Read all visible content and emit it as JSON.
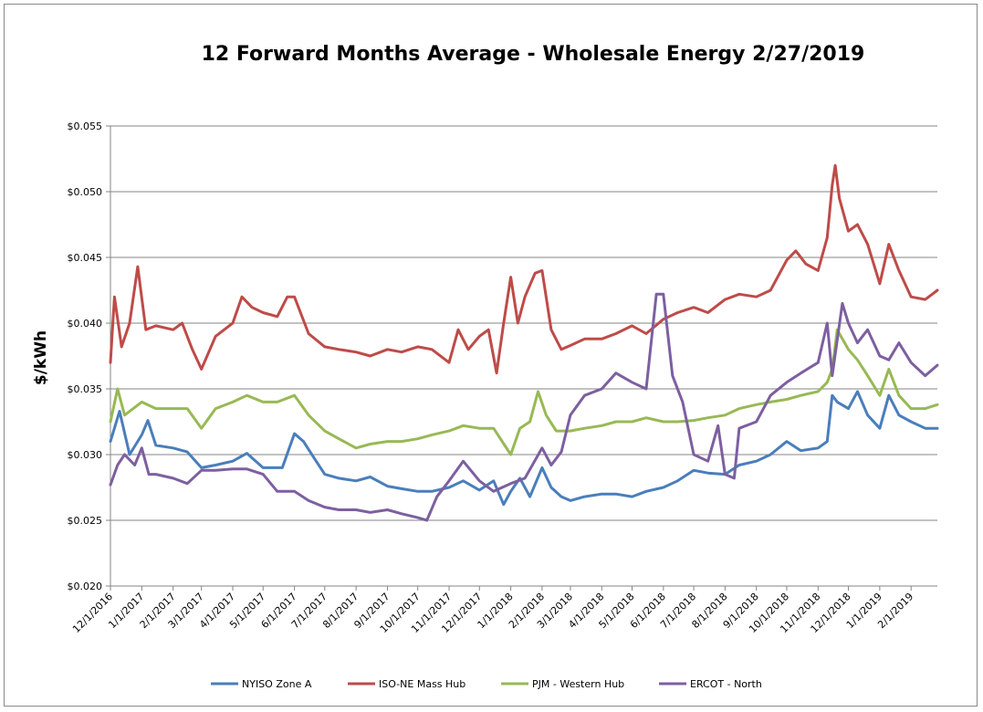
{
  "chart_data": {
    "type": "line",
    "title": "12 Forward Months Average - Wholesale Energy 2/27/2019",
    "xlabel": "",
    "ylabel": "$/kWh",
    "ylim": [
      0.02,
      0.055
    ],
    "yticks": [
      0.02,
      0.025,
      0.03,
      0.035,
      0.04,
      0.045,
      0.05,
      0.055
    ],
    "ytick_labels": [
      "$0.020",
      "$0.025",
      "$0.030",
      "$0.035",
      "$0.040",
      "$0.045",
      "$0.050",
      "$0.055"
    ],
    "xlim": [
      "12/1/2016",
      "2/27/2019"
    ],
    "xtick_labels": [
      "12/1/2016",
      "1/1/2017",
      "2/1/2017",
      "3/1/2017",
      "4/1/2017",
      "5/1/2017",
      "6/1/2017",
      "7/1/2017",
      "8/1/2017",
      "9/1/2017",
      "10/1/2017",
      "11/1/2017",
      "12/1/2017",
      "1/1/2018",
      "2/1/2018",
      "3/1/2018",
      "4/1/2018",
      "5/1/2018",
      "6/1/2018",
      "7/1/2018",
      "8/1/2018",
      "9/1/2018",
      "10/1/2018",
      "11/1/2018",
      "12/1/2018",
      "1/1/2019",
      "2/1/2019"
    ],
    "grid": "horizontal",
    "legend_position": "bottom",
    "series": [
      {
        "name": "NYISO Zone A",
        "color": "#4a7ebb",
        "points": [
          [
            "12/1/2016",
            0.031
          ],
          [
            "12/10/2016",
            0.0333
          ],
          [
            "12/20/2016",
            0.03
          ],
          [
            "1/1/2017",
            0.0315
          ],
          [
            "1/7/2017",
            0.0326
          ],
          [
            "1/15/2017",
            0.0307
          ],
          [
            "2/1/2017",
            0.0305
          ],
          [
            "2/15/2017",
            0.0302
          ],
          [
            "3/1/2017",
            0.029
          ],
          [
            "3/15/2017",
            0.0292
          ],
          [
            "4/1/2017",
            0.0295
          ],
          [
            "4/15/2017",
            0.0301
          ],
          [
            "5/1/2017",
            0.029
          ],
          [
            "5/20/2017",
            0.029
          ],
          [
            "6/1/2017",
            0.0316
          ],
          [
            "6/10/2017",
            0.031
          ],
          [
            "6/20/2017",
            0.0298
          ],
          [
            "7/1/2017",
            0.0285
          ],
          [
            "7/15/2017",
            0.0282
          ],
          [
            "8/1/2017",
            0.028
          ],
          [
            "8/15/2017",
            0.0283
          ],
          [
            "9/1/2017",
            0.0276
          ],
          [
            "9/15/2017",
            0.0274
          ],
          [
            "10/1/2017",
            0.0272
          ],
          [
            "10/15/2017",
            0.0272
          ],
          [
            "11/1/2017",
            0.0275
          ],
          [
            "11/15/2017",
            0.028
          ],
          [
            "12/1/2017",
            0.0273
          ],
          [
            "12/15/2017",
            0.028
          ],
          [
            "12/25/2017",
            0.0262
          ],
          [
            "1/1/2018",
            0.0272
          ],
          [
            "1/10/2018",
            0.0282
          ],
          [
            "1/20/2018",
            0.0268
          ],
          [
            "2/1/2018",
            0.029
          ],
          [
            "2/10/2018",
            0.0275
          ],
          [
            "2/20/2018",
            0.0268
          ],
          [
            "3/1/2018",
            0.0265
          ],
          [
            "3/15/2018",
            0.0268
          ],
          [
            "4/1/2018",
            0.027
          ],
          [
            "4/15/2018",
            0.027
          ],
          [
            "5/1/2018",
            0.0268
          ],
          [
            "5/15/2018",
            0.0272
          ],
          [
            "6/1/2018",
            0.0275
          ],
          [
            "6/15/2018",
            0.028
          ],
          [
            "7/1/2018",
            0.0288
          ],
          [
            "7/15/2018",
            0.0286
          ],
          [
            "8/1/2018",
            0.0285
          ],
          [
            "8/15/2018",
            0.0292
          ],
          [
            "9/1/2018",
            0.0295
          ],
          [
            "9/15/2018",
            0.03
          ],
          [
            "10/1/2018",
            0.031
          ],
          [
            "10/15/2018",
            0.0303
          ],
          [
            "11/1/2018",
            0.0305
          ],
          [
            "11/10/2018",
            0.031
          ],
          [
            "11/15/2018",
            0.0345
          ],
          [
            "11/20/2018",
            0.034
          ],
          [
            "12/1/2018",
            0.0335
          ],
          [
            "12/10/2018",
            0.0348
          ],
          [
            "12/20/2018",
            0.033
          ],
          [
            "1/1/2019",
            0.032
          ],
          [
            "1/10/2019",
            0.0345
          ],
          [
            "1/20/2019",
            0.033
          ],
          [
            "2/1/2019",
            0.0325
          ],
          [
            "2/15/2019",
            0.032
          ],
          [
            "2/27/2019",
            0.032
          ]
        ]
      },
      {
        "name": "ISO-NE Mass Hub",
        "color": "#be4b48",
        "points": [
          [
            "12/1/2016",
            0.037
          ],
          [
            "12/5/2016",
            0.042
          ],
          [
            "12/12/2016",
            0.0382
          ],
          [
            "12/20/2016",
            0.04
          ],
          [
            "12/28/2016",
            0.0443
          ],
          [
            "1/5/2017",
            0.0395
          ],
          [
            "1/15/2017",
            0.0398
          ],
          [
            "2/1/2017",
            0.0395
          ],
          [
            "2/10/2017",
            0.04
          ],
          [
            "2/20/2017",
            0.038
          ],
          [
            "3/1/2017",
            0.0365
          ],
          [
            "3/15/2017",
            0.039
          ],
          [
            "4/1/2017",
            0.04
          ],
          [
            "4/10/2017",
            0.042
          ],
          [
            "4/20/2017",
            0.0412
          ],
          [
            "5/1/2017",
            0.0408
          ],
          [
            "5/15/2017",
            0.0405
          ],
          [
            "5/25/2017",
            0.042
          ],
          [
            "6/1/2017",
            0.042
          ],
          [
            "6/15/2017",
            0.0392
          ],
          [
            "7/1/2017",
            0.0382
          ],
          [
            "7/15/2017",
            0.038
          ],
          [
            "8/1/2017",
            0.0378
          ],
          [
            "8/15/2017",
            0.0375
          ],
          [
            "9/1/2017",
            0.038
          ],
          [
            "9/15/2017",
            0.0378
          ],
          [
            "10/1/2017",
            0.0382
          ],
          [
            "10/15/2017",
            0.038
          ],
          [
            "11/1/2017",
            0.037
          ],
          [
            "11/10/2017",
            0.0395
          ],
          [
            "11/20/2017",
            0.038
          ],
          [
            "12/1/2017",
            0.039
          ],
          [
            "12/10/2017",
            0.0395
          ],
          [
            "12/18/2017",
            0.0362
          ],
          [
            "12/25/2017",
            0.04
          ],
          [
            "1/1/2018",
            0.0435
          ],
          [
            "1/8/2018",
            0.04
          ],
          [
            "1/15/2018",
            0.042
          ],
          [
            "1/25/2018",
            0.0438
          ],
          [
            "2/1/2018",
            0.044
          ],
          [
            "2/10/2018",
            0.0395
          ],
          [
            "2/20/2018",
            0.038
          ],
          [
            "3/1/2018",
            0.0383
          ],
          [
            "3/15/2018",
            0.0388
          ],
          [
            "4/1/2018",
            0.0388
          ],
          [
            "4/15/2018",
            0.0392
          ],
          [
            "5/1/2018",
            0.0398
          ],
          [
            "5/15/2018",
            0.0392
          ],
          [
            "6/1/2018",
            0.0403
          ],
          [
            "6/15/2018",
            0.0408
          ],
          [
            "7/1/2018",
            0.0412
          ],
          [
            "7/15/2018",
            0.0408
          ],
          [
            "8/1/2018",
            0.0418
          ],
          [
            "8/15/2018",
            0.0422
          ],
          [
            "9/1/2018",
            0.042
          ],
          [
            "9/15/2018",
            0.0425
          ],
          [
            "10/1/2018",
            0.0448
          ],
          [
            "10/10/2018",
            0.0455
          ],
          [
            "10/20/2018",
            0.0445
          ],
          [
            "11/1/2018",
            0.044
          ],
          [
            "11/10/2018",
            0.0465
          ],
          [
            "11/15/2018",
            0.0505
          ],
          [
            "11/18/2018",
            0.052
          ],
          [
            "11/22/2018",
            0.0495
          ],
          [
            "12/1/2018",
            0.047
          ],
          [
            "12/10/2018",
            0.0475
          ],
          [
            "12/20/2018",
            0.046
          ],
          [
            "1/1/2019",
            0.043
          ],
          [
            "1/10/2019",
            0.046
          ],
          [
            "1/20/2019",
            0.044
          ],
          [
            "2/1/2019",
            0.042
          ],
          [
            "2/15/2019",
            0.0418
          ],
          [
            "2/27/2019",
            0.0425
          ]
        ]
      },
      {
        "name": "PJM - Western Hub",
        "color": "#98b954",
        "points": [
          [
            "12/1/2016",
            0.0325
          ],
          [
            "12/8/2016",
            0.035
          ],
          [
            "12/15/2016",
            0.033
          ],
          [
            "1/1/2017",
            0.034
          ],
          [
            "1/15/2017",
            0.0335
          ],
          [
            "2/1/2017",
            0.0335
          ],
          [
            "2/15/2017",
            0.0335
          ],
          [
            "3/1/2017",
            0.032
          ],
          [
            "3/15/2017",
            0.0335
          ],
          [
            "4/1/2017",
            0.034
          ],
          [
            "4/15/2017",
            0.0345
          ],
          [
            "5/1/2017",
            0.034
          ],
          [
            "5/15/2017",
            0.034
          ],
          [
            "6/1/2017",
            0.0345
          ],
          [
            "6/15/2017",
            0.033
          ],
          [
            "7/1/2017",
            0.0318
          ],
          [
            "7/15/2017",
            0.0312
          ],
          [
            "8/1/2017",
            0.0305
          ],
          [
            "8/15/2017",
            0.0308
          ],
          [
            "9/1/2017",
            0.031
          ],
          [
            "9/15/2017",
            0.031
          ],
          [
            "10/1/2017",
            0.0312
          ],
          [
            "10/15/2017",
            0.0315
          ],
          [
            "11/1/2017",
            0.0318
          ],
          [
            "11/15/2017",
            0.0322
          ],
          [
            "12/1/2017",
            0.032
          ],
          [
            "12/15/2017",
            0.032
          ],
          [
            "1/1/2018",
            0.03
          ],
          [
            "1/10/2018",
            0.032
          ],
          [
            "1/20/2018",
            0.0325
          ],
          [
            "1/28/2018",
            0.0348
          ],
          [
            "2/5/2018",
            0.033
          ],
          [
            "2/15/2018",
            0.0318
          ],
          [
            "3/1/2018",
            0.0318
          ],
          [
            "3/15/2018",
            0.032
          ],
          [
            "4/1/2018",
            0.0322
          ],
          [
            "4/15/2018",
            0.0325
          ],
          [
            "5/1/2018",
            0.0325
          ],
          [
            "5/15/2018",
            0.0328
          ],
          [
            "6/1/2018",
            0.0325
          ],
          [
            "6/15/2018",
            0.0325
          ],
          [
            "7/1/2018",
            0.0326
          ],
          [
            "7/15/2018",
            0.0328
          ],
          [
            "8/1/2018",
            0.033
          ],
          [
            "8/15/2018",
            0.0335
          ],
          [
            "9/1/2018",
            0.0338
          ],
          [
            "9/15/2018",
            0.034
          ],
          [
            "10/1/2018",
            0.0342
          ],
          [
            "10/15/2018",
            0.0345
          ],
          [
            "11/1/2018",
            0.0348
          ],
          [
            "11/10/2018",
            0.0355
          ],
          [
            "11/15/2018",
            0.0365
          ],
          [
            "11/20/2018",
            0.0395
          ],
          [
            "12/1/2018",
            0.038
          ],
          [
            "12/10/2018",
            0.0372
          ],
          [
            "12/20/2018",
            0.036
          ],
          [
            "1/1/2019",
            0.0345
          ],
          [
            "1/10/2019",
            0.0365
          ],
          [
            "1/20/2019",
            0.0345
          ],
          [
            "2/1/2019",
            0.0335
          ],
          [
            "2/15/2019",
            0.0335
          ],
          [
            "2/27/2019",
            0.0338
          ]
        ]
      },
      {
        "name": "ERCOT - North",
        "color": "#7d5fa0",
        "points": [
          [
            "12/1/2016",
            0.0277
          ],
          [
            "12/8/2016",
            0.0292
          ],
          [
            "12/15/2016",
            0.03
          ],
          [
            "12/25/2016",
            0.0292
          ],
          [
            "1/1/2017",
            0.0305
          ],
          [
            "1/8/2017",
            0.0285
          ],
          [
            "1/15/2017",
            0.0285
          ],
          [
            "2/1/2017",
            0.0282
          ],
          [
            "2/15/2017",
            0.0278
          ],
          [
            "3/1/2017",
            0.0288
          ],
          [
            "3/15/2017",
            0.0288
          ],
          [
            "4/1/2017",
            0.0289
          ],
          [
            "4/15/2017",
            0.0289
          ],
          [
            "5/1/2017",
            0.0285
          ],
          [
            "5/15/2017",
            0.0272
          ],
          [
            "6/1/2017",
            0.0272
          ],
          [
            "6/15/2017",
            0.0265
          ],
          [
            "7/1/2017",
            0.026
          ],
          [
            "7/15/2017",
            0.0258
          ],
          [
            "8/1/2017",
            0.0258
          ],
          [
            "8/15/2017",
            0.0256
          ],
          [
            "9/1/2017",
            0.0258
          ],
          [
            "9/15/2017",
            0.0255
          ],
          [
            "10/1/2017",
            0.0252
          ],
          [
            "10/10/2017",
            0.025
          ],
          [
            "10/20/2017",
            0.0268
          ],
          [
            "11/1/2017",
            0.028
          ],
          [
            "11/15/2017",
            0.0295
          ],
          [
            "12/1/2017",
            0.028
          ],
          [
            "12/15/2017",
            0.0272
          ],
          [
            "1/1/2018",
            0.0278
          ],
          [
            "1/15/2018",
            0.0282
          ],
          [
            "2/1/2018",
            0.0305
          ],
          [
            "2/10/2018",
            0.0292
          ],
          [
            "2/20/2018",
            0.0302
          ],
          [
            "3/1/2018",
            0.033
          ],
          [
            "3/15/2018",
            0.0345
          ],
          [
            "4/1/2018",
            0.035
          ],
          [
            "4/15/2018",
            0.0362
          ],
          [
            "5/1/2018",
            0.0355
          ],
          [
            "5/15/2018",
            0.035
          ],
          [
            "5/25/2018",
            0.0422
          ],
          [
            "6/1/2018",
            0.0422
          ],
          [
            "6/10/2018",
            0.036
          ],
          [
            "6/20/2018",
            0.034
          ],
          [
            "7/1/2018",
            0.03
          ],
          [
            "7/15/2018",
            0.0295
          ],
          [
            "7/25/2018",
            0.0322
          ],
          [
            "8/1/2018",
            0.0285
          ],
          [
            "8/10/2018",
            0.0282
          ],
          [
            "8/15/2018",
            0.032
          ],
          [
            "9/1/2018",
            0.0325
          ],
          [
            "9/15/2018",
            0.0345
          ],
          [
            "10/1/2018",
            0.0355
          ],
          [
            "10/15/2018",
            0.0362
          ],
          [
            "11/1/2018",
            0.037
          ],
          [
            "11/10/2018",
            0.04
          ],
          [
            "11/15/2018",
            0.036
          ],
          [
            "11/25/2018",
            0.0415
          ],
          [
            "12/1/2018",
            0.04
          ],
          [
            "12/10/2018",
            0.0385
          ],
          [
            "12/20/2018",
            0.0395
          ],
          [
            "1/1/2019",
            0.0375
          ],
          [
            "1/10/2019",
            0.0372
          ],
          [
            "1/20/2019",
            0.0385
          ],
          [
            "2/1/2019",
            0.037
          ],
          [
            "2/15/2019",
            0.036
          ],
          [
            "2/27/2019",
            0.0368
          ]
        ]
      }
    ]
  }
}
